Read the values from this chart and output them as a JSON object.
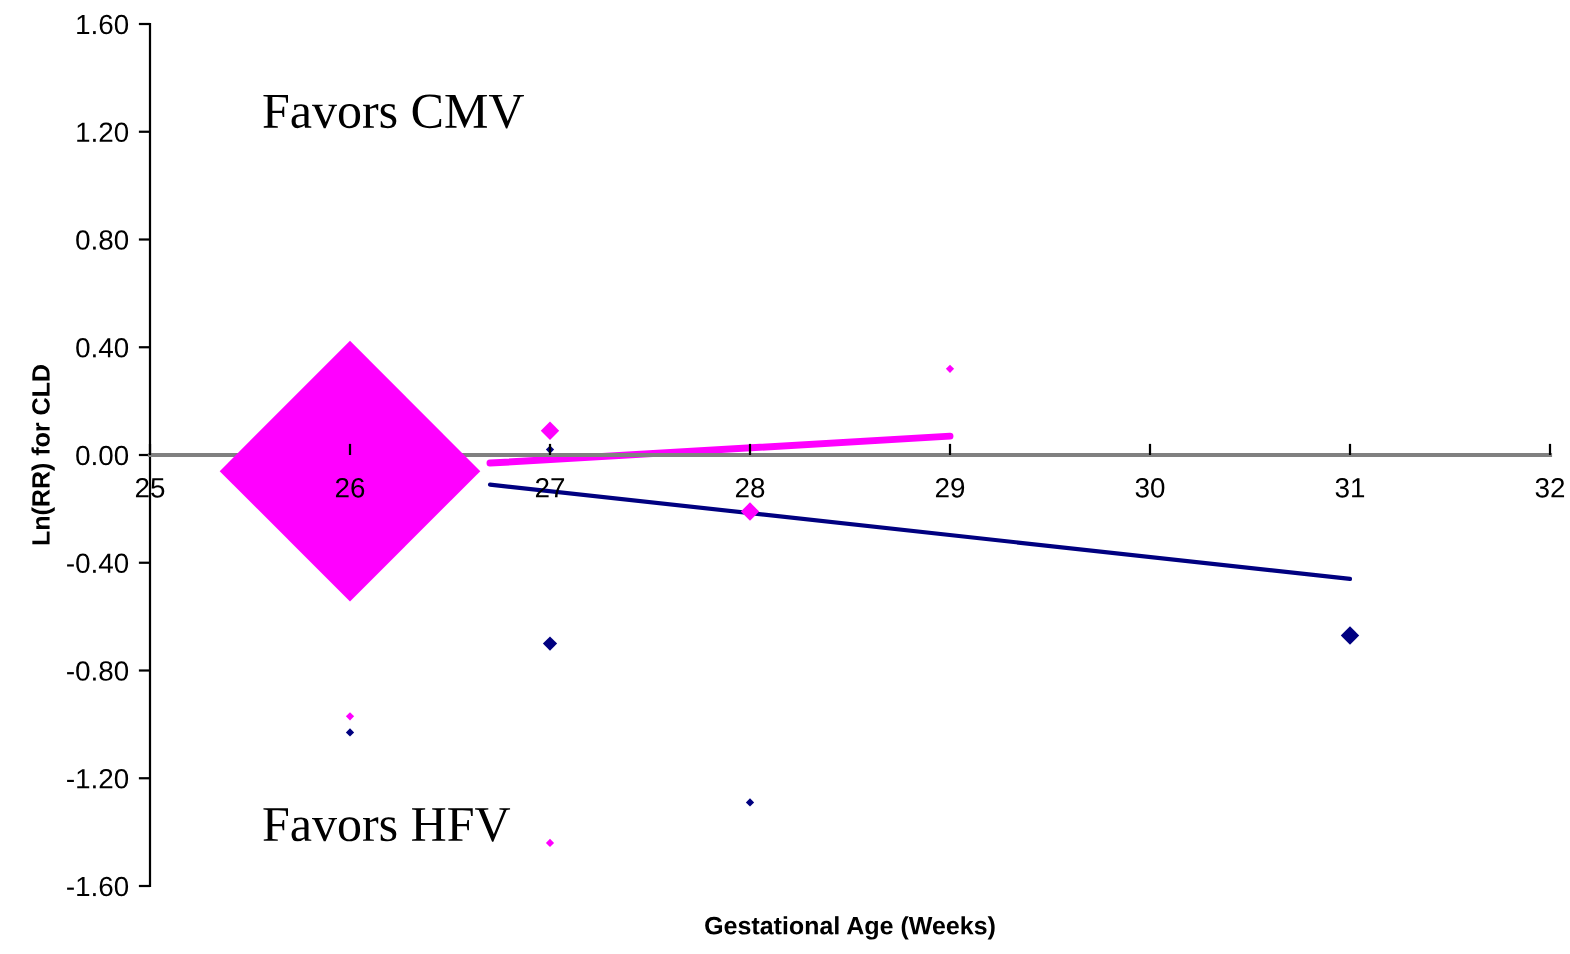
{
  "chart_data": {
    "type": "bubble",
    "xlabel": "Gestational Age (Weeks)",
    "ylabel": "Ln(RR) for CLD",
    "xlim": [
      25,
      32
    ],
    "xticks": [
      25,
      26,
      27,
      28,
      29,
      30,
      31,
      32
    ],
    "ylim": [
      -1.6,
      1.6
    ],
    "yticks": [
      {
        "value": 1.6,
        "label": "1.60"
      },
      {
        "value": 1.2,
        "label": "1.20"
      },
      {
        "value": 0.8,
        "label": "0.80"
      },
      {
        "value": 0.4,
        "label": "0.40"
      },
      {
        "value": 0,
        "label": "0.00"
      },
      {
        "value": -0.4,
        "label": "-0.40"
      },
      {
        "value": -0.8,
        "label": "-0.80"
      },
      {
        "value": -1.2,
        "label": "-1.20"
      },
      {
        "value": -1.6,
        "label": "-1.60"
      }
    ],
    "grid": false,
    "legend": false,
    "marker": "diamond",
    "annotations": [
      "Favors CMV",
      "Favors HFV"
    ],
    "series": [
      {
        "type": "line",
        "marker": "none",
        "color": "#000080",
        "x": [
          26.7,
          31
        ],
        "values": [
          -0.11,
          -0.46
        ]
      },
      {
        "type": "line",
        "marker": "none",
        "color": "#ff00ff",
        "x": [
          26.7,
          29
        ],
        "values": [
          -0.03,
          0.07
        ]
      },
      {
        "color": "#000080",
        "x": [
          26,
          27,
          27,
          28,
          31
        ],
        "values": [
          -1.03,
          0.02,
          -0.7,
          -1.29,
          -0.67
        ],
        "sizes": [
          0.001,
          0.001,
          0.003,
          0.001,
          0.005
        ]
      },
      {
        "color": "#ff00ff",
        "x": [
          26,
          26,
          27,
          27,
          28,
          29
        ],
        "values": [
          -0.06,
          -0.97,
          0.09,
          -1.44,
          -0.21,
          0.32
        ],
        "sizes": [
          1,
          0.001,
          0.005,
          0.001,
          0.005,
          0.001
        ]
      }
    ]
  }
}
